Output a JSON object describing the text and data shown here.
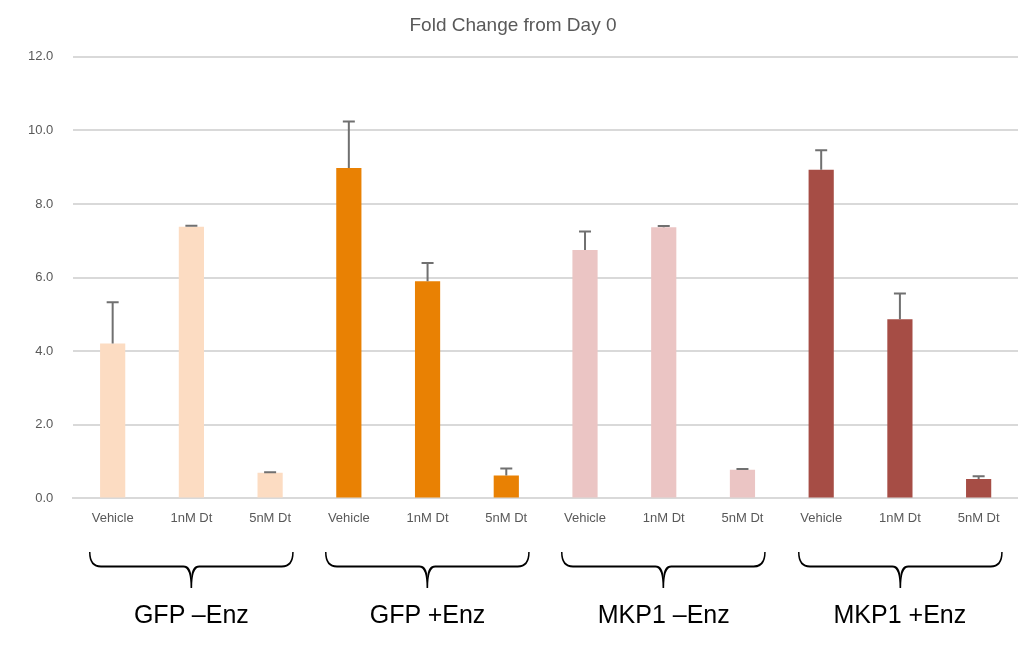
{
  "chart_data": {
    "type": "bar",
    "title": "Fold Change from Day 0",
    "categories": [
      "Vehicle",
      "1nM Dt",
      "5nM Dt",
      "Vehicle",
      "1nM Dt",
      "5nM Dt",
      "Vehicle",
      "1nM Dt",
      "5nM Dt",
      "Vehicle",
      "1nM Dt",
      "5nM Dt"
    ],
    "values": [
      4.21,
      7.38,
      0.7,
      8.98,
      5.9,
      0.62,
      6.75,
      7.37,
      0.78,
      8.93,
      4.87,
      0.53
    ],
    "colors": [
      "#fcdcc2",
      "#fcdcc2",
      "#fcdcc2",
      "#e98103",
      "#e98103",
      "#e98103",
      "#ebc5c4",
      "#ebc5c4",
      "#ebc5c4",
      "#a64d45",
      "#a64d45",
      "#a64d45"
    ],
    "errors": [
      [
        4.21,
        5.33
      ],
      [
        7.38,
        7.41
      ],
      [
        0.7,
        0.71
      ],
      [
        8.98,
        10.24
      ],
      [
        5.9,
        6.4
      ],
      [
        0.62,
        0.81
      ],
      [
        6.75,
        7.25
      ],
      [
        7.37,
        7.4
      ],
      [
        0.78,
        0.8
      ],
      [
        8.93,
        9.46
      ],
      [
        4.87,
        5.57
      ],
      [
        0.53,
        0.6
      ]
    ],
    "ylim": [
      0,
      12
    ],
    "yticks": [
      {
        "value": 0,
        "label": "0.0"
      },
      {
        "value": 2,
        "label": "2.0"
      },
      {
        "value": 4,
        "label": "4.0"
      },
      {
        "value": 6,
        "label": "6.0"
      },
      {
        "value": 8,
        "label": "8.0"
      },
      {
        "value": 10,
        "label": "10.0"
      },
      {
        "value": 12,
        "label": "12.0"
      }
    ],
    "grid": "y",
    "annotations": [
      "GFP –Enz",
      "GFP +Enz",
      "MKP1 –Enz",
      "MKP1 +Enz"
    ]
  }
}
